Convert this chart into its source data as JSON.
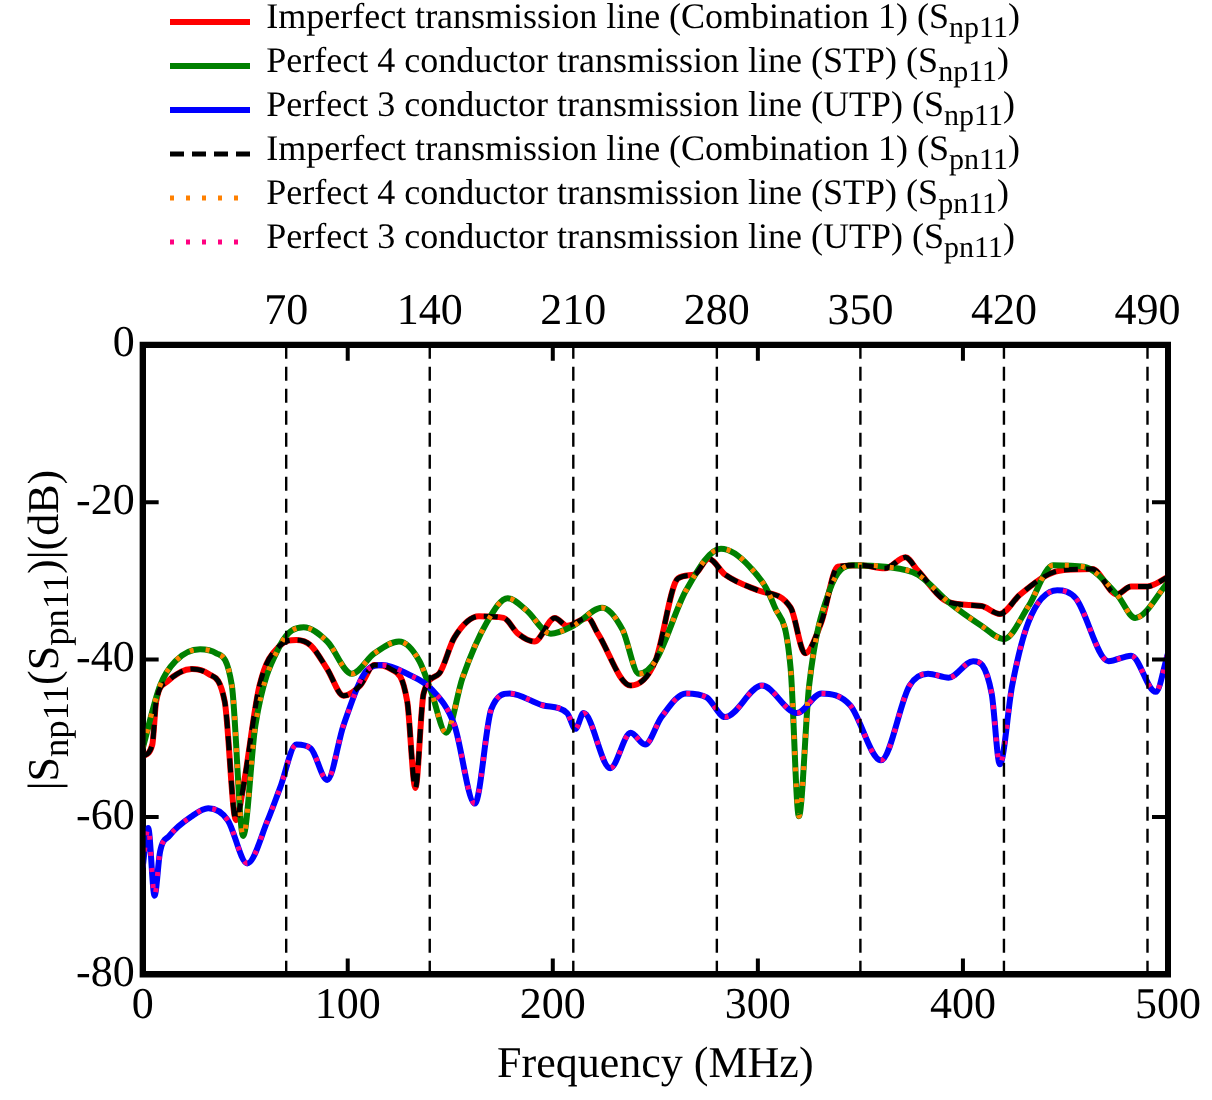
{
  "chart_data": {
    "type": "line",
    "xlabel": "Frequency (MHz)",
    "ylabel": "|S$_{np11}$(S$_{pn11}$)|(dB)",
    "xlim": [
      0,
      500
    ],
    "xticks": [
      0,
      100,
      200,
      300,
      400,
      500
    ],
    "ylim": [
      -80,
      0
    ],
    "yticks": [
      -80,
      -60,
      -40,
      -20,
      0
    ],
    "x2lim": [
      0,
      500
    ],
    "x2ticks": [
      70,
      140,
      210,
      280,
      350,
      420,
      490
    ],
    "grid": false,
    "legend": "top",
    "marker": "none",
    "ref_lines": [
      {
        "axis": "x",
        "value": 70,
        "color": "#000000",
        "line_style": "dashed"
      },
      {
        "axis": "x",
        "value": 140,
        "color": "#000000",
        "line_style": "dashed"
      },
      {
        "axis": "x",
        "value": 210,
        "color": "#000000",
        "line_style": "dashed"
      },
      {
        "axis": "x",
        "value": 280,
        "color": "#000000",
        "line_style": "dashed"
      },
      {
        "axis": "x",
        "value": 350,
        "color": "#000000",
        "line_style": "dashed"
      },
      {
        "axis": "x",
        "value": 420,
        "color": "#000000",
        "line_style": "dashed"
      },
      {
        "axis": "x",
        "value": 490,
        "color": "#000000",
        "line_style": "dashed"
      }
    ],
    "series": [
      {
        "name": "Imperfect transmission line (Combination 1) (S$_{np11}$)",
        "color": "#ff0000",
        "line_style": "solid",
        "x": [
          0,
          4.7,
          6.6,
          12,
          24,
          32,
          40,
          45.5,
          49,
          57,
          67,
          75,
          82,
          90,
          98,
          106,
          113,
          121,
          129,
          133,
          137,
          144.5,
          152,
          164,
          176,
          183,
          191,
          201,
          207,
          217,
          222,
          238,
          250,
          261,
          269,
          276,
          284,
          300,
          316,
          323,
          331,
          339,
          350,
          362,
          372,
          378,
          393,
          409,
          418,
          428,
          447,
          463,
          475,
          482,
          490,
          500
        ],
        "values": [
          -52.3,
          -50.8,
          -45.3,
          -42.8,
          -41.2,
          -41.8,
          -45.3,
          -60.4,
          -56.3,
          -43.3,
          -38.2,
          -37.5,
          -38.2,
          -41.2,
          -44.6,
          -43.3,
          -40.7,
          -41.2,
          -45.3,
          -56.3,
          -44.3,
          -41.8,
          -37.2,
          -34.5,
          -34.7,
          -36.7,
          -37.7,
          -34.7,
          -35.7,
          -34.7,
          -36.7,
          -43.3,
          -40.2,
          -29.7,
          -29.2,
          -27.2,
          -29.2,
          -31.2,
          -33.4,
          -39.2,
          -35.2,
          -28.2,
          -28,
          -28.4,
          -27,
          -28.7,
          -32.7,
          -33.2,
          -34.2,
          -31.7,
          -28.7,
          -28.5,
          -31.7,
          -30.7,
          -30.7,
          -29.5
        ]
      },
      {
        "name": "Perfect 4 conductor transmission line (STP) (S$_{np11}$)",
        "color": "#008000",
        "line_style": "solid",
        "x": [
          0,
          8.5,
          16,
          28,
          36,
          43.5,
          49,
          55,
          67,
          78.5,
          90,
          102,
          113,
          125,
          135,
          141,
          148,
          156,
          168,
          178,
          187,
          199,
          210,
          224,
          234,
          242,
          250,
          265,
          282,
          296,
          308,
          316,
          320,
          325,
          335,
          346,
          362,
          378,
          393,
          409,
          420,
          432,
          444,
          459,
          475,
          484,
          500
        ],
        "values": [
          -51.3,
          -43.3,
          -40.2,
          -38.7,
          -39.2,
          -43.3,
          -62.4,
          -48.3,
          -38.2,
          -35.9,
          -37.7,
          -41.8,
          -39.2,
          -37.7,
          -40.2,
          -44.3,
          -49.3,
          -42.3,
          -35.2,
          -32.2,
          -33.7,
          -36.7,
          -35.7,
          -33.4,
          -36.2,
          -41.8,
          -40.2,
          -31.2,
          -25.9,
          -28.2,
          -33.2,
          -41.2,
          -59.9,
          -43.3,
          -31.2,
          -28,
          -28.2,
          -29.2,
          -32.7,
          -35.7,
          -37.4,
          -33.2,
          -28,
          -28.2,
          -31.7,
          -34.7,
          -30.2
        ]
      },
      {
        "name": "Perfect 3 conductor transmission line (UTP) (S$_{np11}$)",
        "color": "#0000ff",
        "line_style": "solid",
        "x": [
          0,
          2.7,
          5.8,
          8.5,
          13,
          24,
          32,
          41.5,
          51,
          61,
          67,
          75,
          82,
          90,
          98,
          110,
          117,
          129,
          141,
          152,
          162,
          170,
          179,
          195,
          207,
          211,
          215,
          228,
          238,
          245,
          253,
          265,
          275,
          284,
          302,
          319,
          331,
          345,
          360,
          374,
          383,
          393,
          405,
          414,
          418,
          424,
          432,
          446,
          455,
          471,
          482,
          494,
          500
        ],
        "values": [
          -66.4,
          -61.4,
          -70,
          -64.4,
          -62.4,
          -59.9,
          -58.9,
          -60.4,
          -65.9,
          -60.4,
          -56.3,
          -50.8,
          -51.3,
          -55.3,
          -48.3,
          -41.2,
          -40.7,
          -41.8,
          -43.8,
          -48.3,
          -58.3,
          -46.3,
          -44.3,
          -45.8,
          -46.8,
          -48.8,
          -46.8,
          -53.8,
          -49.3,
          -50.8,
          -47.3,
          -44.3,
          -44.8,
          -47.3,
          -43.3,
          -46.8,
          -44.3,
          -45.8,
          -52.8,
          -43.3,
          -41.8,
          -42.3,
          -40.2,
          -44.3,
          -53.3,
          -43.3,
          -35.2,
          -31.2,
          -32.2,
          -40.2,
          -39.5,
          -44.1,
          -39.2
        ]
      },
      {
        "name": "Imperfect transmission line (Combination 1) (S$_{pn11}$)",
        "color": "#000000",
        "line_style": "dashed",
        "x": [
          0,
          4.7,
          6.6,
          12,
          24,
          32,
          40,
          45.5,
          49,
          57,
          67,
          75,
          82,
          90,
          98,
          106,
          113,
          121,
          129,
          133,
          137,
          144.5,
          152,
          164,
          176,
          183,
          191,
          201,
          207,
          217,
          222,
          238,
          250,
          261,
          269,
          276,
          284,
          300,
          316,
          323,
          331,
          339,
          350,
          362,
          372,
          378,
          393,
          409,
          418,
          428,
          447,
          463,
          475,
          482,
          490,
          500
        ],
        "values": [
          -52.3,
          -50.8,
          -45.3,
          -42.8,
          -41.2,
          -41.8,
          -45.3,
          -60.4,
          -56.3,
          -43.3,
          -38.2,
          -37.5,
          -38.2,
          -41.2,
          -44.6,
          -43.3,
          -40.7,
          -41.2,
          -45.3,
          -56.3,
          -44.3,
          -41.8,
          -37.2,
          -34.5,
          -34.7,
          -36.7,
          -37.7,
          -34.7,
          -35.7,
          -34.7,
          -36.7,
          -43.3,
          -40.2,
          -29.7,
          -29.2,
          -27.2,
          -29.2,
          -31.2,
          -33.4,
          -39.2,
          -35.2,
          -28.2,
          -28,
          -28.4,
          -27,
          -28.7,
          -32.7,
          -33.2,
          -34.2,
          -31.7,
          -28.7,
          -28.5,
          -31.7,
          -30.7,
          -30.7,
          -29.5
        ]
      },
      {
        "name": "Perfect 4 conductor transmission line (STP)  (S$_{pn11}$)",
        "color": "#ff8000",
        "line_style": "dotted",
        "x": [
          0,
          8.5,
          16,
          28,
          36,
          43.5,
          49,
          55,
          67,
          78.5,
          90,
          102,
          113,
          125,
          135,
          141,
          148,
          156,
          168,
          178,
          187,
          199,
          210,
          224,
          234,
          242,
          250,
          265,
          282,
          296,
          308,
          316,
          320,
          325,
          335,
          346,
          362,
          378,
          393,
          409,
          420,
          432,
          444,
          459,
          475,
          484,
          500
        ],
        "values": [
          -51.3,
          -43.3,
          -40.2,
          -38.7,
          -39.2,
          -43.3,
          -62.4,
          -48.3,
          -38.2,
          -35.9,
          -37.7,
          -41.8,
          -39.2,
          -37.7,
          -40.2,
          -44.3,
          -49.3,
          -42.3,
          -35.2,
          -32.2,
          -33.7,
          -36.7,
          -35.7,
          -33.4,
          -36.2,
          -41.8,
          -40.2,
          -31.2,
          -25.9,
          -28.2,
          -33.2,
          -41.2,
          -59.9,
          -43.3,
          -31.2,
          -28,
          -28.2,
          -29.2,
          -32.7,
          -35.7,
          -37.4,
          -33.2,
          -28,
          -28.2,
          -31.7,
          -34.7,
          -30.2
        ]
      },
      {
        "name": "Perfect 3 conductor transmission line (UTP)  (S$_{pn11}$)",
        "color": "#ff0080",
        "line_style": "dotted",
        "x": [
          0,
          2.7,
          5.8,
          8.5,
          13,
          24,
          32,
          41.5,
          51,
          61,
          67,
          75,
          82,
          90,
          98,
          110,
          117,
          129,
          141,
          152,
          162,
          170,
          179,
          195,
          207,
          211,
          215,
          228,
          238,
          245,
          253,
          265,
          275,
          284,
          302,
          319,
          331,
          345,
          360,
          374,
          383,
          393,
          405,
          414,
          418,
          424,
          432,
          446,
          455,
          471,
          482,
          494,
          500
        ],
        "values": [
          -66.4,
          -61.4,
          -70,
          -64.4,
          -62.4,
          -59.9,
          -58.9,
          -60.4,
          -65.9,
          -60.4,
          -56.3,
          -50.8,
          -51.3,
          -55.3,
          -48.3,
          -41.2,
          -40.7,
          -41.8,
          -43.8,
          -48.3,
          -58.3,
          -46.3,
          -44.3,
          -45.8,
          -46.8,
          -48.8,
          -46.8,
          -53.8,
          -49.3,
          -50.8,
          -47.3,
          -44.3,
          -44.8,
          -47.3,
          -43.3,
          -46.8,
          -44.3,
          -45.8,
          -52.8,
          -43.3,
          -41.8,
          -42.3,
          -40.2,
          -44.3,
          -53.3,
          -43.3,
          -35.2,
          -31.2,
          -32.2,
          -40.2,
          -39.5,
          -44.1,
          -39.2
        ]
      }
    ]
  }
}
